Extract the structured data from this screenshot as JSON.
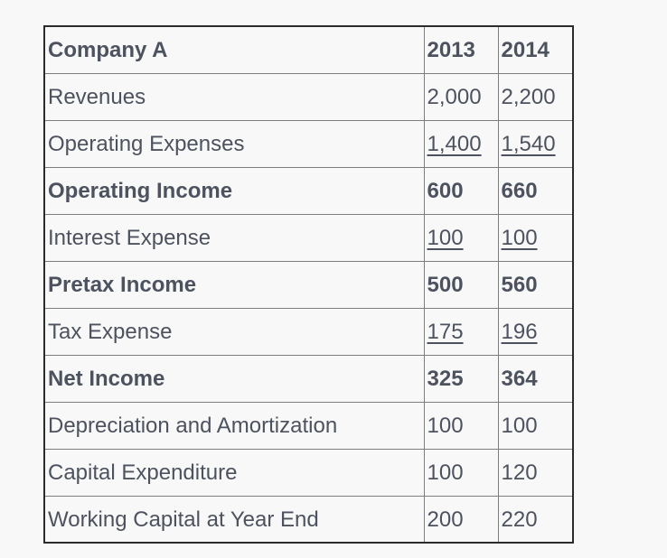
{
  "colors": {
    "text": "#4d525f",
    "outer_border": "#2b2b2b",
    "grid": "#7d7d7d",
    "background": "#f8f8f9"
  },
  "table": {
    "header": {
      "label": "Company A",
      "y2013": "2013",
      "y2014": "2014"
    },
    "rows": [
      {
        "label": "Revenues",
        "v2013": "2,000",
        "v2014": "2,200",
        "bold": false,
        "underline_values": false
      },
      {
        "label": "Operating Expenses",
        "v2013": "1,400",
        "v2014": "1,540",
        "bold": false,
        "underline_values": true
      },
      {
        "label": "Operating Income",
        "v2013": "600",
        "v2014": "660",
        "bold": true,
        "underline_values": false
      },
      {
        "label": "Interest Expense",
        "v2013": "100",
        "v2014": "100",
        "bold": false,
        "underline_values": true
      },
      {
        "label": "Pretax Income",
        "v2013": "500",
        "v2014": "560",
        "bold": true,
        "underline_values": false
      },
      {
        "label": "Tax Expense",
        "v2013": "175",
        "v2014": "196",
        "bold": false,
        "underline_values": true
      },
      {
        "label": "Net Income",
        "v2013": "325",
        "v2014": "364",
        "bold": true,
        "underline_values": false
      },
      {
        "label": "Depreciation and Amortization",
        "v2013": "100",
        "v2014": "100",
        "bold": false,
        "underline_values": false
      },
      {
        "label": "Capital Expenditure",
        "v2013": "100",
        "v2014": "120",
        "bold": false,
        "underline_values": false
      },
      {
        "label": "Working Capital at Year End",
        "v2013": "200",
        "v2014": "220",
        "bold": false,
        "underline_values": false
      }
    ]
  },
  "chart_data": {
    "type": "table",
    "title": "Company A",
    "columns": [
      "Company A",
      "2013",
      "2014"
    ],
    "rows": [
      [
        "Revenues",
        2000,
        2200
      ],
      [
        "Operating Expenses",
        1400,
        1540
      ],
      [
        "Operating Income",
        600,
        660
      ],
      [
        "Interest Expense",
        100,
        100
      ],
      [
        "Pretax Income",
        500,
        560
      ],
      [
        "Tax Expense",
        175,
        196
      ],
      [
        "Net Income",
        325,
        364
      ],
      [
        "Depreciation and Amortization",
        100,
        100
      ],
      [
        "Capital Expenditure",
        100,
        120
      ],
      [
        "Working Capital at Year End",
        200,
        220
      ]
    ]
  }
}
